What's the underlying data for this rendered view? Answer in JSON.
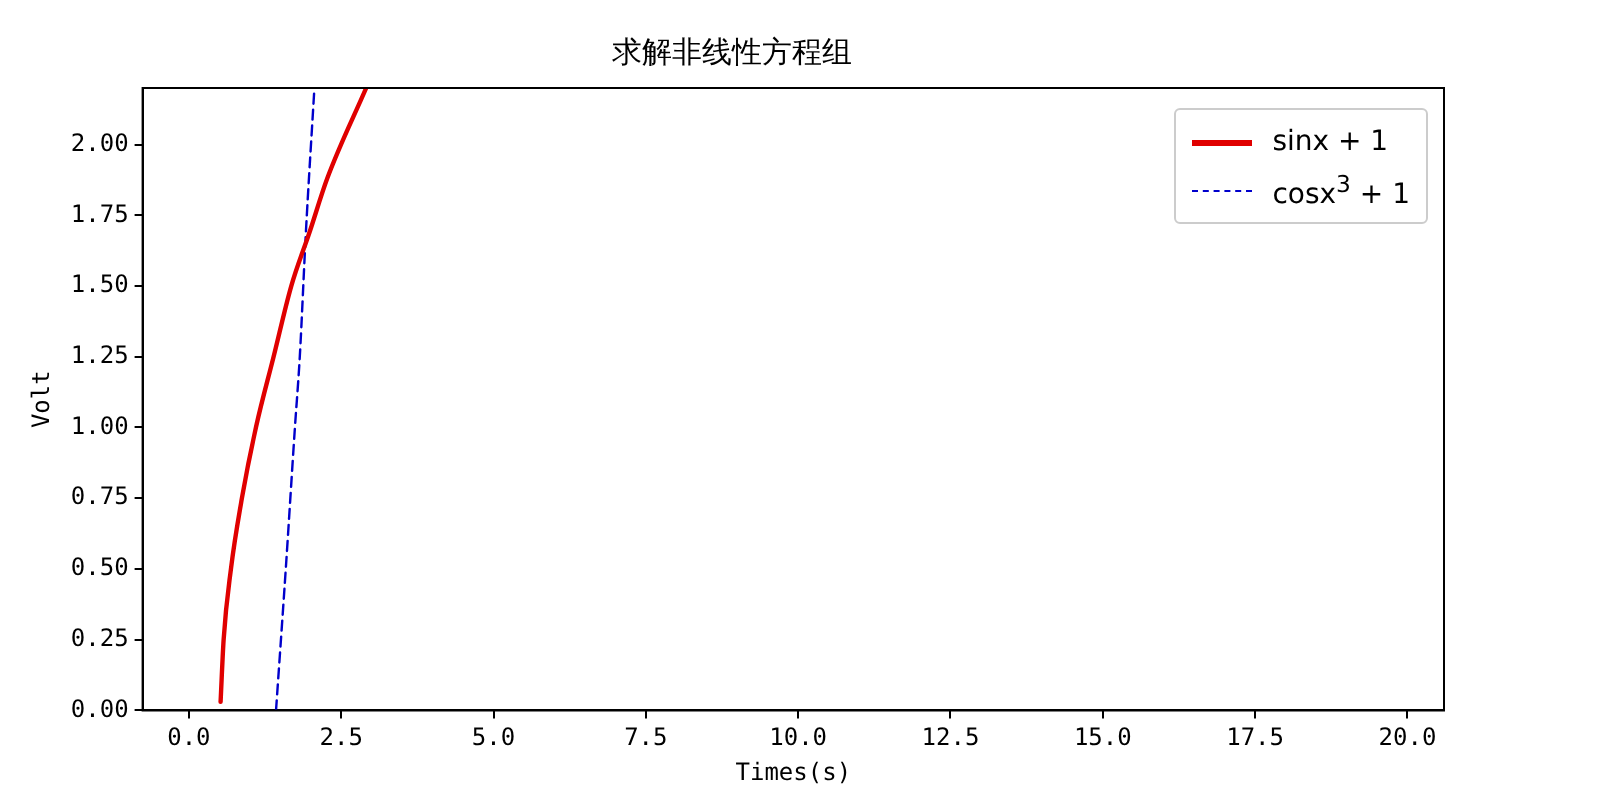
{
  "chart_data": {
    "type": "line",
    "title": "求解非线性方程组",
    "xlabel": "Times(s)",
    "ylabel": "Volt",
    "xlim": [
      -0.76,
      20.6
    ],
    "xticks": [
      {
        "value": 0,
        "label": "0.0"
      },
      {
        "value": 2.5,
        "label": "2.5"
      },
      {
        "value": 5,
        "label": "5.0"
      },
      {
        "value": 7.5,
        "label": "7.5"
      },
      {
        "value": 10,
        "label": "10.0"
      },
      {
        "value": 12.5,
        "label": "12.5"
      },
      {
        "value": 15,
        "label": "15.0"
      },
      {
        "value": 17.5,
        "label": "17.5"
      },
      {
        "value": 20,
        "label": "20.0"
      }
    ],
    "ylim": [
      0,
      2.2
    ],
    "yticks": [
      {
        "value": 0,
        "label": "0.00"
      },
      {
        "value": 0.25,
        "label": "0.25"
      },
      {
        "value": 0.5,
        "label": "0.50"
      },
      {
        "value": 0.75,
        "label": "0.75"
      },
      {
        "value": 1,
        "label": "1.00"
      },
      {
        "value": 1.25,
        "label": "1.25"
      },
      {
        "value": 1.5,
        "label": "1.50"
      },
      {
        "value": 1.75,
        "label": "1.75"
      },
      {
        "value": 2,
        "label": "2.00"
      }
    ],
    "grid": false,
    "legend": "top right",
    "series": [
      {
        "name": "sinx + 1",
        "color": "#e00000",
        "line_style": "solid",
        "x": [
          0.52,
          0.57,
          0.69,
          0.87,
          1.1,
          1.39,
          1.68,
          1.98,
          2.27,
          2.91
        ],
        "values": [
          0.03,
          0.25,
          0.5,
          0.75,
          1.0,
          1.25,
          1.5,
          1.69,
          1.88,
          2.2
        ]
      },
      {
        "name": "cosx$^{3}$ + 1",
        "color": "#0000cc",
        "line_style": "dashed",
        "x": [
          1.43,
          1.59,
          1.74,
          1.82,
          1.92,
          2.06
        ],
        "values": [
          0,
          0.5,
          1.0,
          1.25,
          1.69,
          2.2
        ]
      }
    ]
  }
}
